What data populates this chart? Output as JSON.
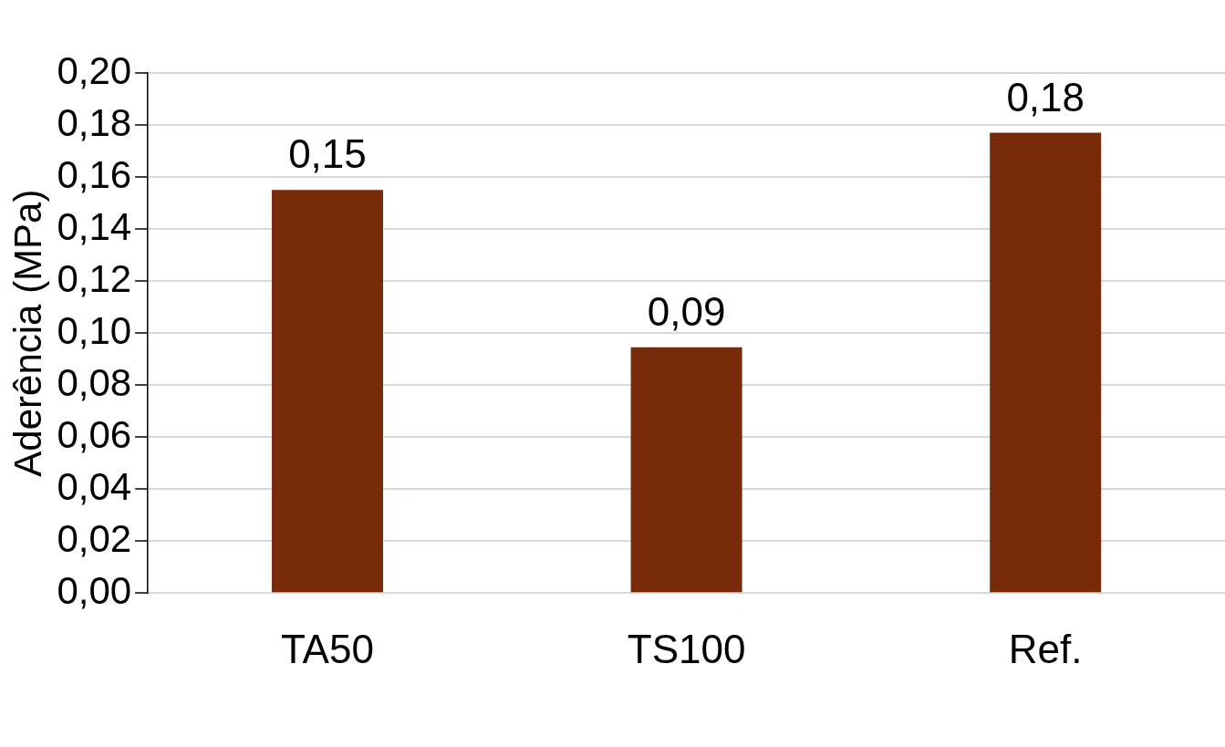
{
  "chart_data": {
    "type": "bar",
    "ylabel": "Aderência (MPa)",
    "categories": [
      "TA50",
      "TS100",
      "Ref."
    ],
    "values": [
      0.155,
      0.0945,
      0.177
    ],
    "value_labels": [
      "0,15",
      "0,09",
      "0,18"
    ],
    "color": "#772b08",
    "ylim": [
      0,
      0.2
    ],
    "yticks": [
      {
        "value": 0,
        "label": "0,00"
      },
      {
        "value": 0.02,
        "label": "0,02"
      },
      {
        "value": 0.04,
        "label": "0,04"
      },
      {
        "value": 0.06,
        "label": "0,06"
      },
      {
        "value": 0.08,
        "label": "0,08"
      },
      {
        "value": 0.1,
        "label": "0,10"
      },
      {
        "value": 0.12,
        "label": "0,12"
      },
      {
        "value": 0.14,
        "label": "0,14"
      },
      {
        "value": 0.16,
        "label": "0,16"
      },
      {
        "value": 0.18,
        "label": "0,18"
      },
      {
        "value": 0.2,
        "label": "0,20"
      }
    ],
    "grid": "y",
    "legend": false
  }
}
